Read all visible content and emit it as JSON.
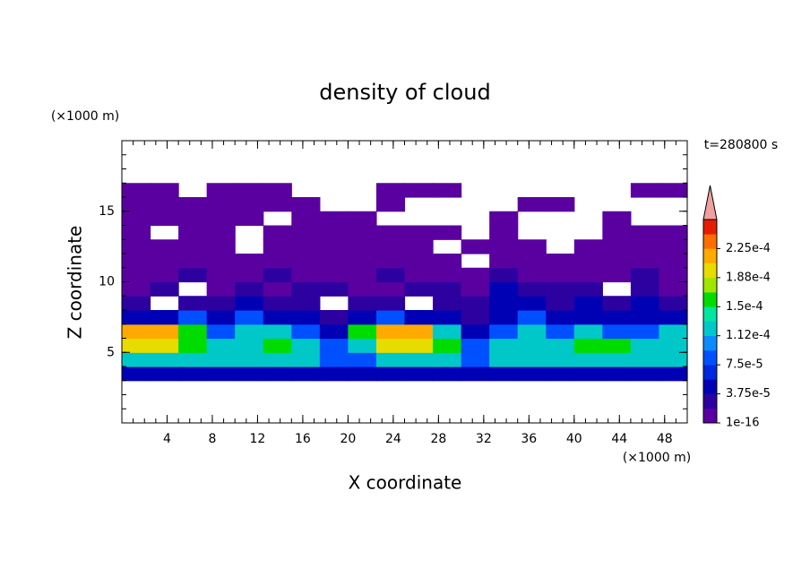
{
  "chart_data": {
    "type": "contour",
    "title": "density of cloud",
    "x_unit": "(×1000 m)",
    "y_unit": "(×1000 m)",
    "xlabel": "X coordinate",
    "ylabel": "Z coordinate",
    "annotation": "t=280800 s",
    "xlim": [
      0,
      50
    ],
    "ylim": [
      0,
      20
    ],
    "xticks": [
      4,
      8,
      12,
      16,
      20,
      24,
      28,
      32,
      36,
      40,
      44,
      48
    ],
    "yticks": [
      5,
      10,
      15
    ],
    "x": [
      1.25,
      3.75,
      6.25,
      8.75,
      11.25,
      13.75,
      16.25,
      18.75,
      21.25,
      23.75,
      26.25,
      28.75,
      31.25,
      33.75,
      36.25,
      38.75,
      41.25,
      43.75,
      46.25,
      48.75
    ],
    "y": [
      3.5,
      4.5,
      5.5,
      6.5,
      7.5,
      8.5,
      9.5,
      10.5,
      11.5,
      12.5,
      13.5,
      14.5,
      15.5,
      16.5
    ],
    "values": [
      [
        4.5e-05,
        4.5e-05,
        4.5e-05,
        4.5e-05,
        4.5e-05,
        4.5e-05,
        4.5e-05,
        4.5e-05,
        4.5e-05,
        4.5e-05,
        4.5e-05,
        4.5e-05,
        4.5e-05,
        4.5e-05,
        4.5e-05,
        4.5e-05,
        4.5e-05,
        4.5e-05,
        4.5e-05,
        4.5e-05
      ],
      [
        0.00012,
        0.00012,
        0.00012,
        0.00012,
        0.00012,
        0.00012,
        0.00012,
        8e-05,
        8e-05,
        0.00012,
        0.00012,
        0.00012,
        8e-05,
        0.00012,
        0.00012,
        0.00012,
        0.00012,
        0.00012,
        0.00012,
        0.00012
      ],
      [
        0.00019,
        0.00019,
        0.00016,
        0.00012,
        0.00012,
        0.00016,
        0.00012,
        8e-05,
        0.00012,
        0.00019,
        0.00019,
        0.00016,
        8e-05,
        0.00012,
        0.00012,
        0.00012,
        0.00016,
        0.00016,
        0.00012,
        0.00012
      ],
      [
        0.00022,
        0.00022,
        0.00016,
        8e-05,
        0.00012,
        0.00012,
        8e-05,
        4.5e-05,
        0.00016,
        0.00022,
        0.00022,
        0.00012,
        4.5e-05,
        8e-05,
        0.00012,
        8e-05,
        0.00012,
        8e-05,
        8e-05,
        0.00012
      ],
      [
        4.5e-05,
        4.5e-05,
        8e-05,
        4.5e-05,
        8e-05,
        4.5e-05,
        4.5e-05,
        2.5e-05,
        4.5e-05,
        8e-05,
        4.5e-05,
        4.5e-05,
        2.5e-05,
        4.5e-05,
        8e-05,
        4.5e-05,
        4.5e-05,
        4.5e-05,
        4.5e-05,
        4.5e-05
      ],
      [
        2.5e-05,
        null,
        2.5e-05,
        2.5e-05,
        4.5e-05,
        2.5e-05,
        2.5e-05,
        null,
        2.5e-05,
        2.5e-05,
        null,
        2.5e-05,
        2.5e-05,
        4.5e-05,
        4.5e-05,
        2.5e-05,
        4.5e-05,
        2.5e-05,
        4.5e-05,
        2.5e-05
      ],
      [
        5e-06,
        2.5e-05,
        null,
        5e-06,
        2.5e-05,
        5e-06,
        2.5e-05,
        2.5e-05,
        5e-06,
        5e-06,
        2.5e-05,
        2.5e-05,
        5e-06,
        4.5e-05,
        2.5e-05,
        2.5e-05,
        2.5e-05,
        null,
        2.5e-05,
        5e-06
      ],
      [
        5e-06,
        5e-06,
        2.5e-05,
        5e-06,
        5e-06,
        2.5e-05,
        5e-06,
        5e-06,
        5e-06,
        2.5e-05,
        5e-06,
        5e-06,
        5e-06,
        2.5e-05,
        5e-06,
        5e-06,
        5e-06,
        5e-06,
        2.5e-05,
        5e-06
      ],
      [
        5e-06,
        5e-06,
        5e-06,
        5e-06,
        5e-06,
        5e-06,
        5e-06,
        5e-06,
        5e-06,
        5e-06,
        5e-06,
        5e-06,
        null,
        5e-06,
        5e-06,
        5e-06,
        5e-06,
        5e-06,
        5e-06,
        5e-06
      ],
      [
        5e-06,
        5e-06,
        5e-06,
        5e-06,
        null,
        5e-06,
        5e-06,
        5e-06,
        5e-06,
        5e-06,
        5e-06,
        null,
        5e-06,
        5e-06,
        5e-06,
        null,
        5e-06,
        5e-06,
        5e-06,
        5e-06
      ],
      [
        5e-06,
        null,
        5e-06,
        5e-06,
        null,
        5e-06,
        5e-06,
        5e-06,
        5e-06,
        5e-06,
        5e-06,
        5e-06,
        null,
        5e-06,
        null,
        null,
        null,
        5e-06,
        5e-06,
        5e-06
      ],
      [
        5e-06,
        5e-06,
        5e-06,
        5e-06,
        5e-06,
        null,
        5e-06,
        5e-06,
        5e-06,
        null,
        null,
        null,
        null,
        5e-06,
        null,
        null,
        null,
        5e-06,
        null,
        null
      ],
      [
        5e-06,
        5e-06,
        5e-06,
        5e-06,
        5e-06,
        5e-06,
        5e-06,
        null,
        null,
        5e-06,
        null,
        null,
        null,
        null,
        5e-06,
        5e-06,
        null,
        null,
        null,
        null
      ],
      [
        5e-06,
        5e-06,
        null,
        5e-06,
        5e-06,
        5e-06,
        null,
        null,
        null,
        5e-06,
        5e-06,
        5e-06,
        null,
        null,
        null,
        null,
        null,
        null,
        5e-06,
        5e-06
      ]
    ],
    "levels": [
      1e-16,
      1.875e-05,
      3.75e-05,
      5.625e-05,
      7.5e-05,
      9.375e-05,
      0.0001125,
      0.00013125,
      0.00015,
      0.00016875,
      0.0001875,
      0.00020625,
      0.000225,
      0.00024375,
      0.0002625
    ],
    "colors": [
      "#5a00a0",
      "#2d00a0",
      "#0000b4",
      "#0028dc",
      "#0050ff",
      "#0a8cff",
      "#00c8c8",
      "#00e6a0",
      "#00dc00",
      "#a0e600",
      "#e6dc00",
      "#ffaa00",
      "#ff6e00",
      "#e61e00"
    ],
    "extend_color": "#f0a0a0",
    "cticks": [
      1e-16,
      {
        "value": 3.75e-05,
        "label": "3.75e-5"
      },
      {
        "value": 7.5e-05,
        "label": "7.5e-5"
      },
      {
        "value": 0.0001125,
        "label": "1.12e-4"
      },
      {
        "value": 0.00015,
        "label": "1.5e-4"
      },
      {
        "value": 0.0001875,
        "label": "1.88e-4"
      },
      {
        "value": 0.000225,
        "label": "2.25e-4"
      }
    ]
  }
}
